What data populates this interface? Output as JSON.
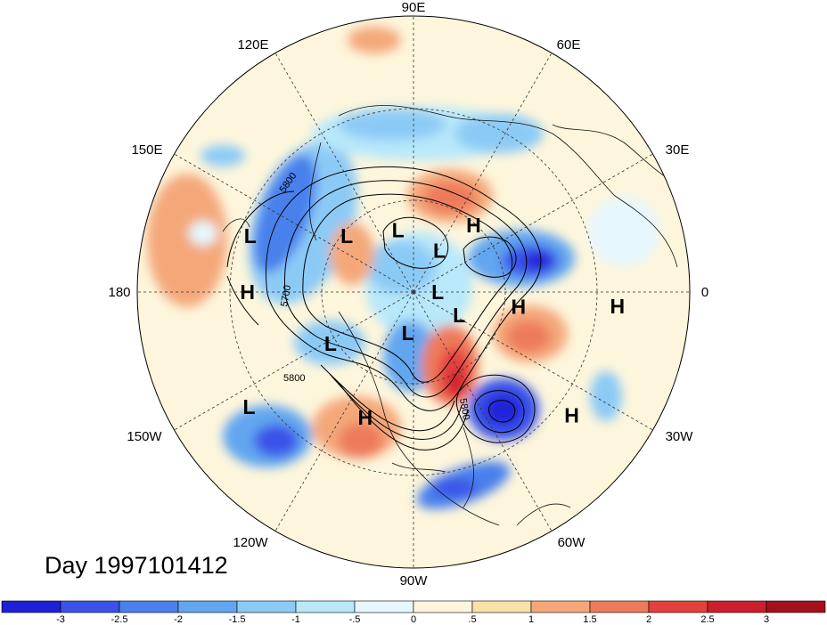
{
  "longitude_labels": [
    "90E",
    "60E",
    "30E",
    "0",
    "30W",
    "60W",
    "90W",
    "120W",
    "150W",
    "180",
    "150E",
    "120E"
  ],
  "pressure_centers": [
    {
      "label": "H",
      "lat": 54,
      "lon": 48
    },
    {
      "label": "L",
      "lat": 26,
      "lon": 161
    },
    {
      "label": "L",
      "lat": 55,
      "lon": 140
    },
    {
      "label": "L",
      "lat": 64,
      "lon": 104
    },
    {
      "label": "L",
      "lat": 70,
      "lon": 58
    },
    {
      "label": "L",
      "lat": 80,
      "lon": 0
    },
    {
      "label": "L",
      "lat": 69,
      "lon": -27
    },
    {
      "label": "L",
      "lat": 73,
      "lon": -98
    },
    {
      "label": "L",
      "lat": 51,
      "lon": -148
    },
    {
      "label": "H",
      "lat": 48,
      "lon": -8
    },
    {
      "label": "H",
      "lat": 28,
      "lon": 180
    },
    {
      "label": "H",
      "lat": 17,
      "lon": -4
    },
    {
      "label": "H",
      "lat": 18,
      "lon": -38
    },
    {
      "label": "H",
      "lat": 38,
      "lon": -111
    },
    {
      "label": "L",
      "lat": 18,
      "lon": -145
    }
  ],
  "contour_labels": [
    "5800",
    "5700",
    "5800",
    "5800"
  ],
  "colorbar": {
    "ticks": [
      "-3",
      "-2.5",
      "-2",
      "-1.5",
      "-1",
      "-.5",
      "0",
      ".5",
      "1",
      "1.5",
      "2",
      "2.5",
      "3"
    ],
    "colors": [
      "#2020d8",
      "#3a52e8",
      "#4a80ec",
      "#62a6f0",
      "#8ccaf6",
      "#b8e8fa",
      "#e6f7fd",
      "#fdf6dc",
      "#f9e1a8",
      "#f4a87a",
      "#ee7a5c",
      "#e5413c",
      "#cc1e2c",
      "#a5101c"
    ]
  },
  "title": "Day 1997101412"
}
